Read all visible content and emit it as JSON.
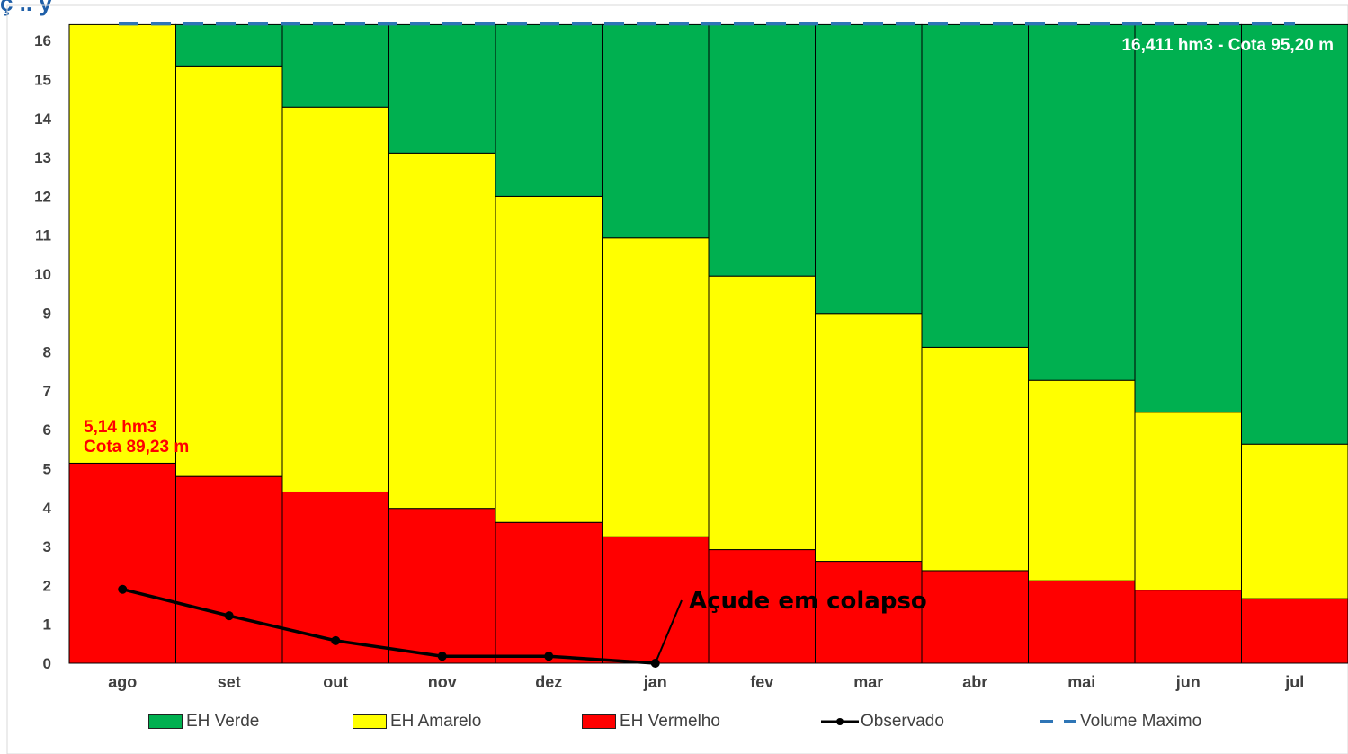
{
  "header": {
    "title_fragment": "ç  ..  y"
  },
  "chart_data": {
    "type": "bar",
    "stacked": true,
    "categories": [
      "ago",
      "set",
      "out",
      "nov",
      "dez",
      "jan",
      "fev",
      "mar",
      "abr",
      "mai",
      "jun",
      "jul"
    ],
    "series": [
      {
        "name": "EH Vermelho",
        "color": "#ff0000",
        "values": [
          5.14,
          4.8,
          4.4,
          3.98,
          3.62,
          3.25,
          2.92,
          2.62,
          2.38,
          2.12,
          1.88,
          1.66
        ]
      },
      {
        "name": "EH Amarelo",
        "color": "#ffff00",
        "values": [
          11.271,
          10.55,
          9.89,
          9.13,
          8.38,
          7.68,
          7.03,
          6.37,
          5.74,
          5.15,
          4.57,
          3.97
        ]
      },
      {
        "name": "EH Verde",
        "color": "#00b050",
        "values": [
          0,
          1.061,
          2.121,
          3.301,
          4.411,
          5.481,
          6.461,
          7.421,
          8.291,
          9.141,
          9.961,
          10.781
        ]
      }
    ],
    "observed": {
      "name": "Observado",
      "color": "#000000",
      "categories": [
        "ago",
        "set",
        "out",
        "nov",
        "dez",
        "jan"
      ],
      "values": [
        1.9,
        1.22,
        0.58,
        0.18,
        0.18,
        0.0
      ]
    },
    "max_line": {
      "name": "Volume Maximo",
      "value": 16.411,
      "color": "#2e75b6"
    },
    "ylim": [
      0,
      16.411
    ],
    "yticks": [
      0,
      1,
      2,
      3,
      4,
      5,
      6,
      7,
      8,
      9,
      10,
      11,
      12,
      13,
      14,
      15,
      16
    ],
    "legend_position": "bottom",
    "annotations": {
      "max_label": "16,411 hm3 - Cota 95,20 m",
      "min_label_line1": "5,14 hm3",
      "min_label_line2": "Cota 89,23 m",
      "collapse_label": "Açude em colapso"
    }
  }
}
